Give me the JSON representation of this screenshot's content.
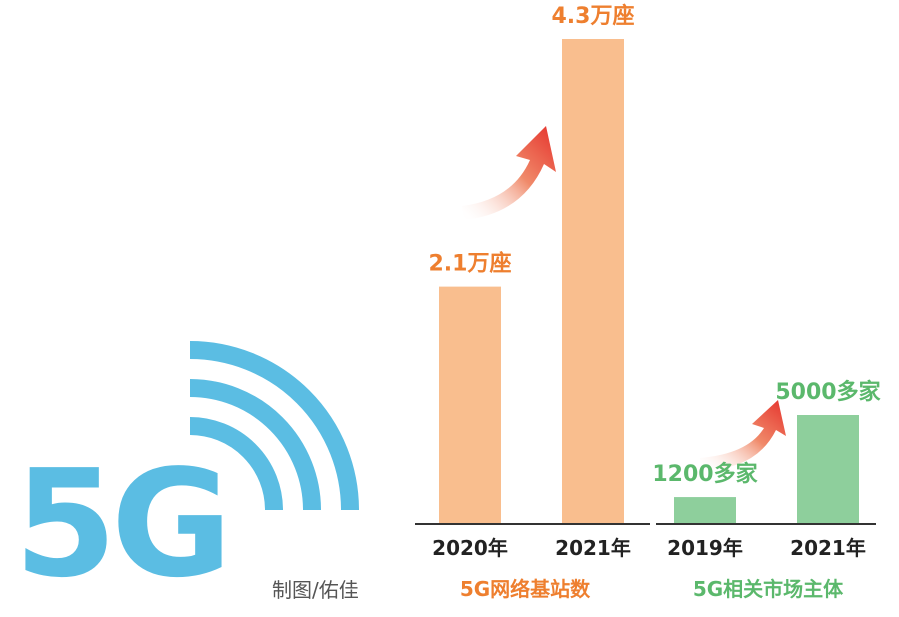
{
  "logo": {
    "text": "5G",
    "color": "#5bbde3"
  },
  "credit": "制图/佑佳",
  "colors": {
    "orange_bar": "#f9be8e",
    "orange_text": "#ee7f2f",
    "green_bar": "#8ecf9c",
    "green_text": "#5bb86c",
    "axis": "#333333",
    "arrow": "#e8433b"
  },
  "chart_data": [
    {
      "type": "bar",
      "title": "5G网络基站数",
      "categories": [
        "2020年",
        "2021年"
      ],
      "values": [
        2.1,
        4.3
      ],
      "data_labels": [
        "2.1万座",
        "4.3万座"
      ],
      "unit": "万座"
    },
    {
      "type": "bar",
      "title": "5G相关市场主体",
      "categories": [
        "2019年",
        "2021年"
      ],
      "values": [
        1200,
        5000
      ],
      "data_labels": [
        "1200多家",
        "5000多家"
      ],
      "unit": "多家"
    }
  ]
}
